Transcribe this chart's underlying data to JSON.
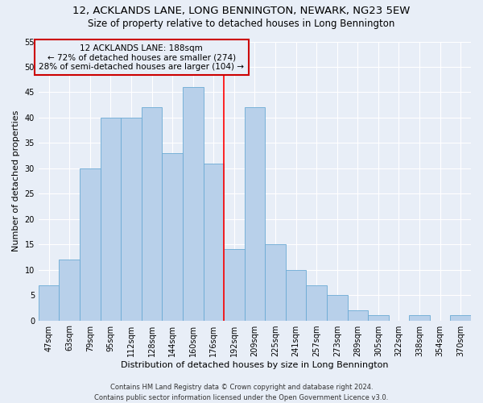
{
  "title1": "12, ACKLANDS LANE, LONG BENNINGTON, NEWARK, NG23 5EW",
  "title2": "Size of property relative to detached houses in Long Bennington",
  "xlabel": "Distribution of detached houses by size in Long Bennington",
  "ylabel": "Number of detached properties",
  "categories": [
    "47sqm",
    "63sqm",
    "79sqm",
    "95sqm",
    "112sqm",
    "128sqm",
    "144sqm",
    "160sqm",
    "176sqm",
    "192sqm",
    "209sqm",
    "225sqm",
    "241sqm",
    "257sqm",
    "273sqm",
    "289sqm",
    "305sqm",
    "322sqm",
    "338sqm",
    "354sqm",
    "370sqm"
  ],
  "values": [
    7,
    12,
    30,
    40,
    40,
    42,
    33,
    46,
    31,
    14,
    42,
    15,
    10,
    7,
    5,
    2,
    1,
    0,
    1,
    0,
    1
  ],
  "bar_color": "#b8d0ea",
  "bar_edge_color": "#6aaad4",
  "property_line_x": 8.5,
  "annotation_text": "12 ACKLANDS LANE: 188sqm\n← 72% of detached houses are smaller (274)\n28% of semi-detached houses are larger (104) →",
  "annotation_box_color": "#cc0000",
  "ylim": [
    0,
    55
  ],
  "yticks": [
    0,
    5,
    10,
    15,
    20,
    25,
    30,
    35,
    40,
    45,
    50,
    55
  ],
  "footer1": "Contains HM Land Registry data © Crown copyright and database right 2024.",
  "footer2": "Contains public sector information licensed under the Open Government Licence v3.0.",
  "background_color": "#e8eef7",
  "grid_color": "#ffffff",
  "title1_fontsize": 9.5,
  "title2_fontsize": 8.5,
  "axis_label_fontsize": 8,
  "tick_fontsize": 7,
  "annotation_fontsize": 7.5,
  "footer_fontsize": 6
}
